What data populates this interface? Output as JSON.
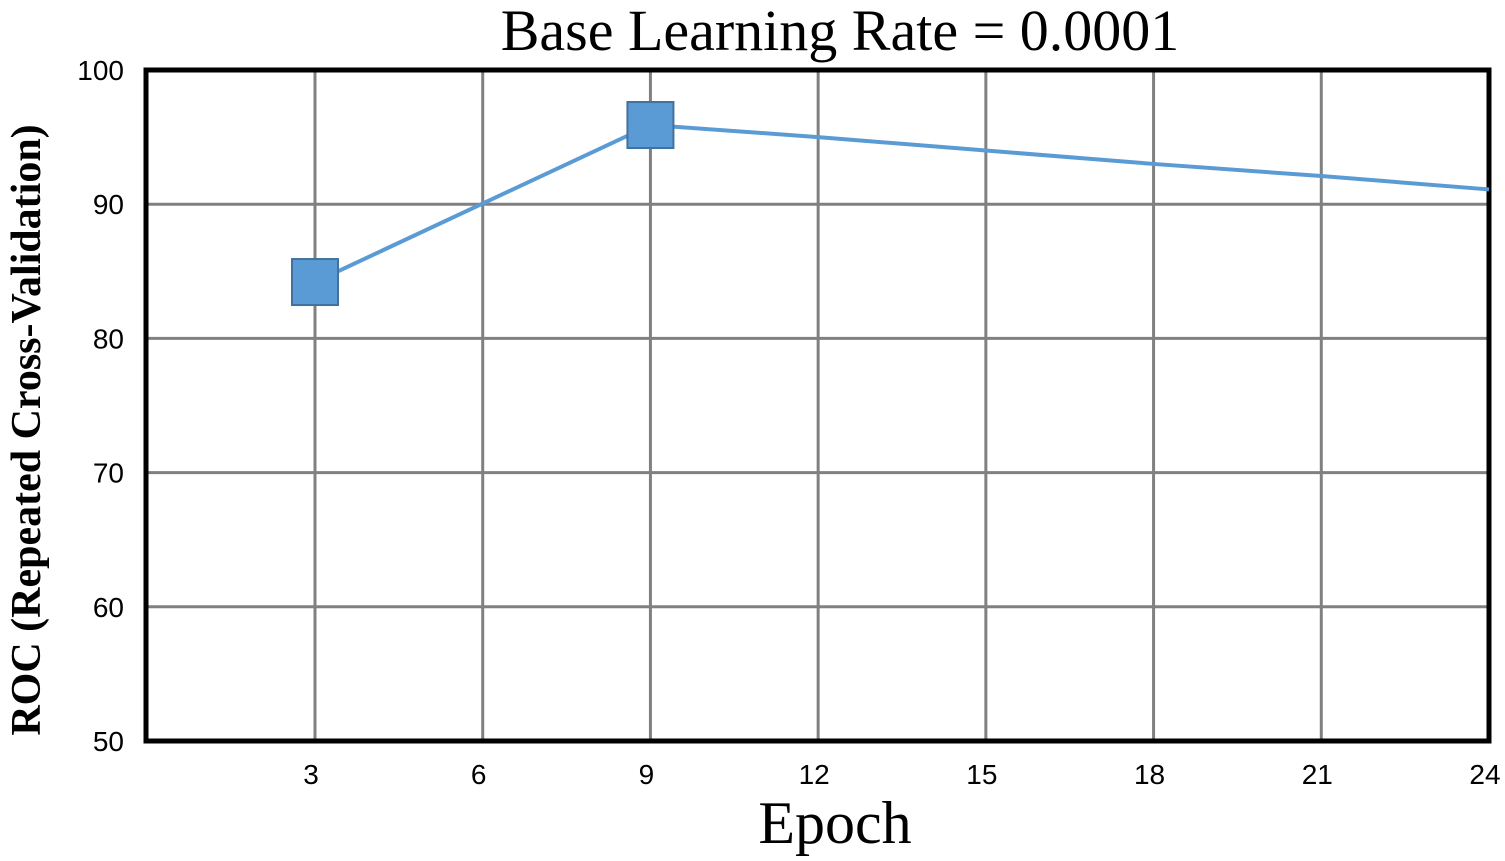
{
  "chart_data": {
    "type": "line",
    "title": "Base Learning Rate = 0.0001",
    "xlabel": "Epoch",
    "ylabel": "ROC (Repeated Cross-Validation)",
    "x_ticks": [
      3,
      6,
      9,
      12,
      15,
      18,
      21,
      24
    ],
    "y_ticks": [
      50,
      60,
      70,
      80,
      90,
      100
    ],
    "xlim": [
      0,
      24
    ],
    "ylim": [
      50,
      100
    ],
    "grid": true,
    "legend": null,
    "series": [
      {
        "name": "ROC",
        "color": "#5b9bd5",
        "marker": "square",
        "x": [
          3,
          9,
          12,
          15,
          18,
          21,
          24
        ],
        "values": [
          84.2,
          95.9,
          95.0,
          94.0,
          93.0,
          92.1,
          91.1
        ],
        "markers_at": [
          3,
          9
        ]
      }
    ]
  }
}
